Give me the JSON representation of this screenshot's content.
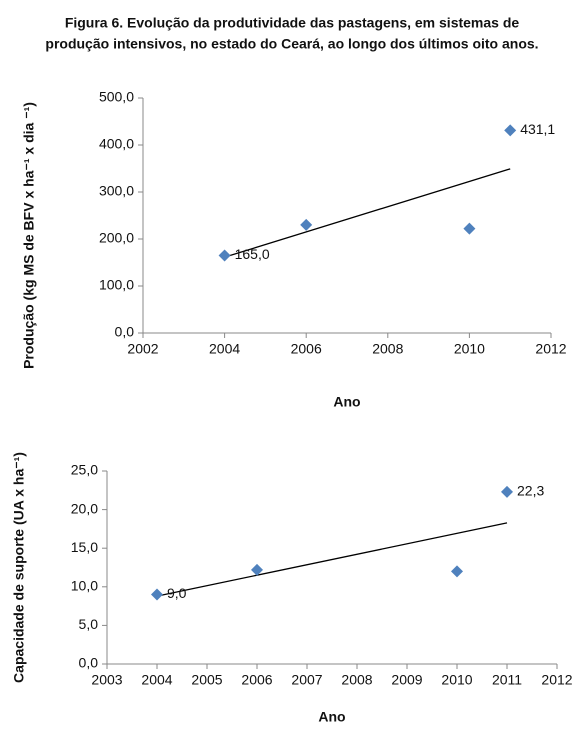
{
  "caption": {
    "line1": "Figura 6.  Evolução da produtividade das pastagens, em sistemas de",
    "line2": "produção intensivos, no estado do Ceará, ao longo dos últimos oito anos."
  },
  "chart_data": [
    {
      "type": "scatter",
      "xlabel": "Ano",
      "ylabel": "Produção (kg MS de BFV x ha⁻¹ x dia ⁻¹)",
      "x": [
        2004,
        2006,
        2010,
        2011
      ],
      "values": [
        165,
        230,
        222,
        431.1
      ],
      "value_labels": [
        "165,0",
        null,
        null,
        "431,1"
      ],
      "color": "#4f81bd",
      "trendline": true,
      "xlim": [
        2002,
        2012
      ],
      "xticks": [
        2002,
        2004,
        2006,
        2008,
        2010,
        2012
      ],
      "ylim": [
        0,
        500
      ],
      "yticks": [
        {
          "value": 0,
          "label": "0,0"
        },
        {
          "value": 100,
          "label": "100,0"
        },
        {
          "value": 200,
          "label": "200,0"
        },
        {
          "value": 300,
          "label": "300,0"
        },
        {
          "value": 400,
          "label": "400,0"
        },
        {
          "value": 500,
          "label": "500,0"
        }
      ]
    },
    {
      "type": "scatter",
      "xlabel": "Ano",
      "ylabel": "Capacidade de suporte (UA x ha⁻¹)",
      "x": [
        2004,
        2006,
        2010,
        2011
      ],
      "values": [
        9.0,
        12.2,
        12.0,
        22.3
      ],
      "value_labels": [
        "9,0",
        null,
        null,
        "22,3"
      ],
      "color": "#4f81bd",
      "trendline": true,
      "xlim": [
        2003,
        2012
      ],
      "xticks": [
        2003,
        2004,
        2005,
        2006,
        2007,
        2008,
        2009,
        2010,
        2011,
        2012
      ],
      "ylim": [
        0,
        25
      ],
      "yticks": [
        {
          "value": 0,
          "label": "0,0"
        },
        {
          "value": 5,
          "label": "5,0"
        },
        {
          "value": 10,
          "label": "10,0"
        },
        {
          "value": 15,
          "label": "15,0"
        },
        {
          "value": 20,
          "label": "20,0"
        },
        {
          "value": 25,
          "label": "25,0"
        }
      ]
    }
  ]
}
